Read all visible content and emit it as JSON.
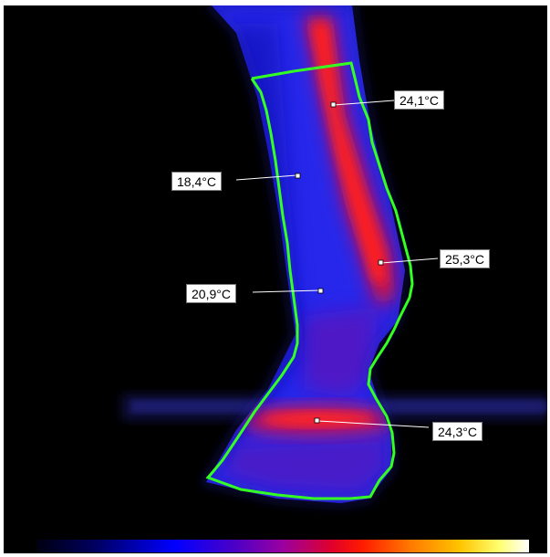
{
  "thermal_image": {
    "measurements": [
      {
        "id": "m1",
        "label": "24,1°C"
      },
      {
        "id": "m2",
        "label": "18,4°C"
      },
      {
        "id": "m3",
        "label": "25,3°C"
      },
      {
        "id": "m4",
        "label": "20,9°C"
      },
      {
        "id": "m5",
        "label": "24,3°C"
      }
    ],
    "colors": {
      "background": "#000000",
      "outline": "#33ff22",
      "cold": "#1a1aff",
      "warm": "#ff1a1a"
    }
  }
}
